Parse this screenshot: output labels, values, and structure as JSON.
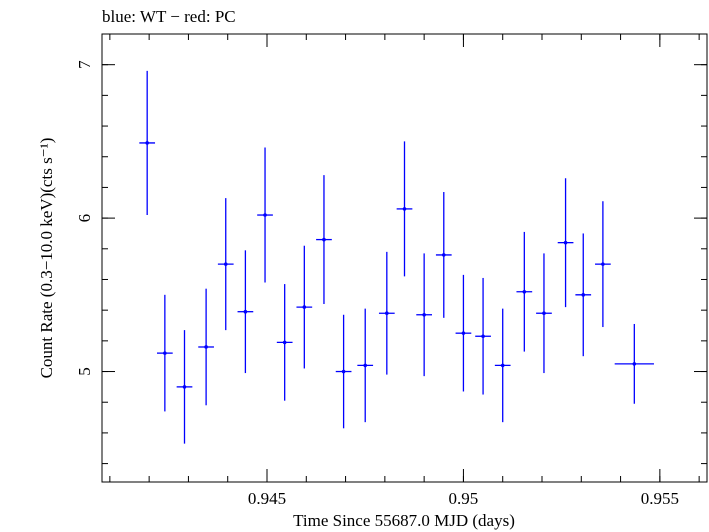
{
  "chart_data": {
    "type": "scatter",
    "title": "blue: WT − red: PC",
    "xlabel": "Time Since 55687.0 MJD (days)",
    "ylabel": "Count Rate (0.3−10.0 keV)(cts s⁻¹)",
    "xlim": [
      0.9408,
      0.9562
    ],
    "ylim": [
      4.28,
      7.2
    ],
    "x_ticks": [
      {
        "value": 0.945,
        "label": "0.945"
      },
      {
        "value": 0.95,
        "label": "0.95"
      },
      {
        "value": 0.955,
        "label": "0.955"
      }
    ],
    "x_minor_step": 0.001,
    "y_ticks": [
      {
        "value": 5,
        "label": "5"
      },
      {
        "value": 6,
        "label": "6"
      },
      {
        "value": 7,
        "label": "7"
      }
    ],
    "y_minor_step": 0.2,
    "grid": false,
    "series": [
      {
        "name": "WT",
        "color": "#0000ff",
        "points": [
          {
            "x": 0.94195,
            "y": 6.49,
            "xerr": 0.0002,
            "yerr": 0.47
          },
          {
            "x": 0.9424,
            "y": 5.12,
            "xerr": 0.0002,
            "yerr": 0.38
          },
          {
            "x": 0.9429,
            "y": 4.9,
            "xerr": 0.0002,
            "yerr": 0.37
          },
          {
            "x": 0.94345,
            "y": 5.16,
            "xerr": 0.0002,
            "yerr": 0.38
          },
          {
            "x": 0.94395,
            "y": 5.7,
            "xerr": 0.0002,
            "yerr": 0.43
          },
          {
            "x": 0.94445,
            "y": 5.39,
            "xerr": 0.0002,
            "yerr": 0.4
          },
          {
            "x": 0.94495,
            "y": 6.02,
            "xerr": 0.0002,
            "yerr": 0.44
          },
          {
            "x": 0.94545,
            "y": 5.19,
            "xerr": 0.0002,
            "yerr": 0.38
          },
          {
            "x": 0.94595,
            "y": 5.42,
            "xerr": 0.0002,
            "yerr": 0.4
          },
          {
            "x": 0.94645,
            "y": 5.86,
            "xerr": 0.0002,
            "yerr": 0.42
          },
          {
            "x": 0.94695,
            "y": 5.0,
            "xerr": 0.0002,
            "yerr": 0.37
          },
          {
            "x": 0.9475,
            "y": 5.04,
            "xerr": 0.0002,
            "yerr": 0.37
          },
          {
            "x": 0.94805,
            "y": 5.38,
            "xerr": 0.0002,
            "yerr": 0.4
          },
          {
            "x": 0.9485,
            "y": 6.06,
            "xerr": 0.0002,
            "yerr": 0.44
          },
          {
            "x": 0.949,
            "y": 5.37,
            "xerr": 0.0002,
            "yerr": 0.4
          },
          {
            "x": 0.9495,
            "y": 5.76,
            "xerr": 0.0002,
            "yerr": 0.41
          },
          {
            "x": 0.95,
            "y": 5.25,
            "xerr": 0.0002,
            "yerr": 0.38
          },
          {
            "x": 0.9505,
            "y": 5.23,
            "xerr": 0.0002,
            "yerr": 0.38
          },
          {
            "x": 0.951,
            "y": 5.04,
            "xerr": 0.0002,
            "yerr": 0.37
          },
          {
            "x": 0.95155,
            "y": 5.52,
            "xerr": 0.0002,
            "yerr": 0.39
          },
          {
            "x": 0.95205,
            "y": 5.38,
            "xerr": 0.0002,
            "yerr": 0.39
          },
          {
            "x": 0.9526,
            "y": 5.84,
            "xerr": 0.0002,
            "yerr": 0.42
          },
          {
            "x": 0.95305,
            "y": 5.5,
            "xerr": 0.0002,
            "yerr": 0.4
          },
          {
            "x": 0.95355,
            "y": 5.7,
            "xerr": 0.0002,
            "yerr": 0.41
          },
          {
            "x": 0.95435,
            "y": 5.05,
            "xerr": 0.0005,
            "yerr": 0.26
          }
        ]
      }
    ]
  }
}
